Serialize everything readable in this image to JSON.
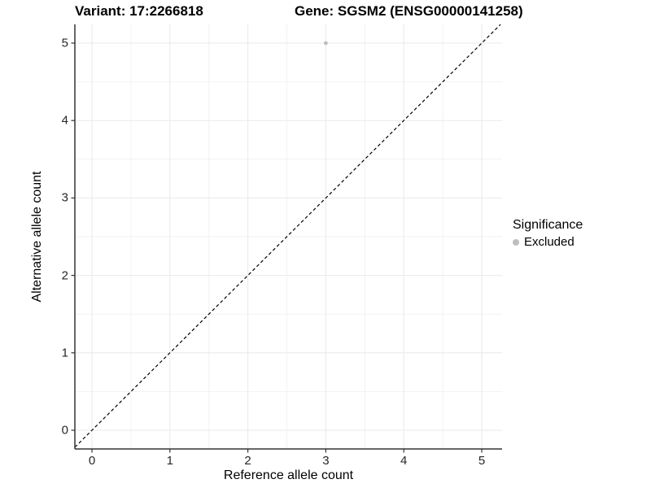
{
  "header": {
    "variant_title": "Variant: 17:2266818",
    "gene_title": "Gene: SGSM2 (ENSG00000141258)"
  },
  "axes": {
    "x_label": "Reference allele count",
    "y_label": "Alternative allele count"
  },
  "legend": {
    "title": "Significance",
    "items": [
      {
        "label": "Excluded",
        "color": "#bebebe"
      }
    ]
  },
  "colors": {
    "background": "#ffffff",
    "grid_major": "#e9e9e9",
    "grid_minor": "#f2f2f2",
    "axis_line": "#333333",
    "tick_mark": "#333333",
    "reference_line": "#000000",
    "point_excluded": "#bebebe"
  },
  "chart_data": {
    "type": "scatter",
    "title": "Variant: 17:2266818   Gene: SGSM2 (ENSG00000141258)",
    "xlabel": "Reference allele count",
    "ylabel": "Alternative allele count",
    "xlim": [
      -0.25,
      5.25
    ],
    "ylim": [
      -0.25,
      5.25
    ],
    "x_ticks": [
      0,
      1,
      2,
      3,
      4,
      5
    ],
    "y_ticks": [
      0,
      1,
      2,
      3,
      4,
      5
    ],
    "grid": "major and minor, light gray on white",
    "legend_position": "right-center",
    "series": [
      {
        "name": "Excluded",
        "color": "#bebebe",
        "point_radius": 2.4,
        "points": [
          {
            "x": 3,
            "y": 5
          }
        ]
      }
    ],
    "reference_line": {
      "type": "identity (y = x)",
      "style": "dashed",
      "color": "#000000"
    }
  }
}
